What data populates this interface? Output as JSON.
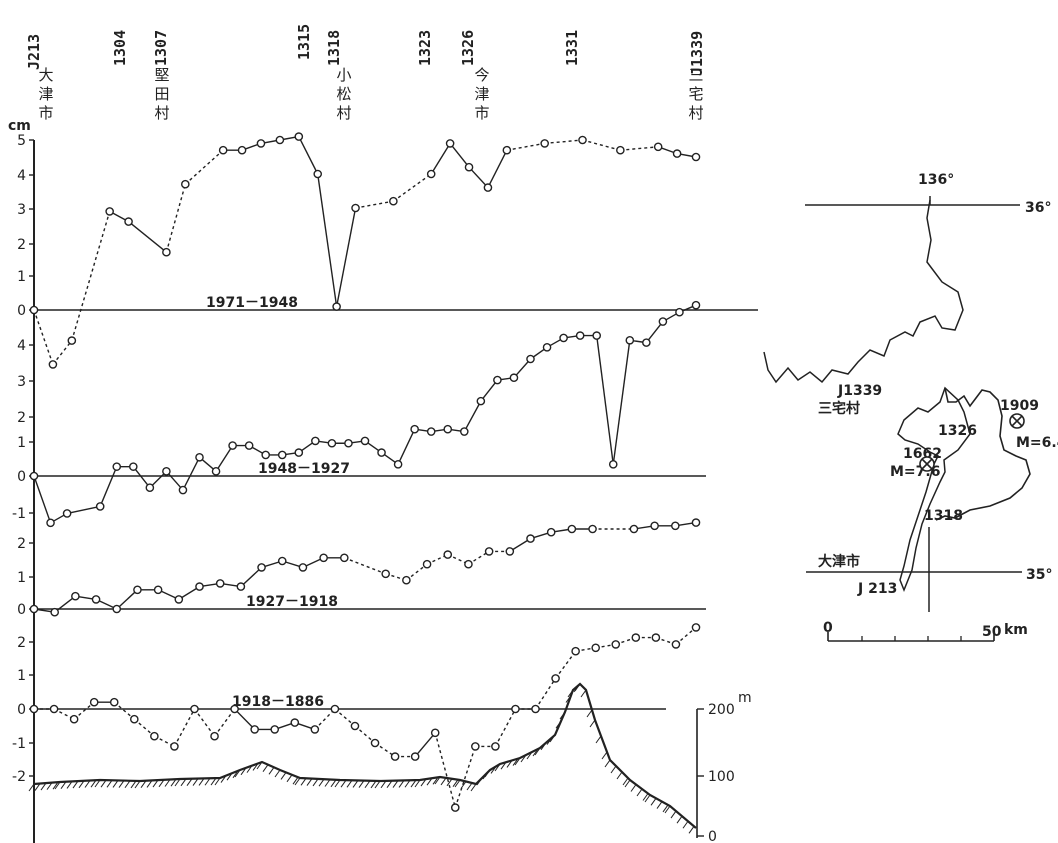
{
  "chart_data": [
    {
      "type": "line",
      "y_unit": "cm",
      "bench_marks": [
        "J213",
        "1304",
        "1307",
        "1315",
        "1318",
        "1323",
        "1326",
        "1331",
        "J1339"
      ],
      "places": [
        "大津市",
        "堅田村",
        "小松村",
        "今津市",
        "三宅村"
      ],
      "series": [
        {
          "name": "1971－1948",
          "yticks": [
            "5",
            "4",
            "3",
            "2",
            "1",
            "0"
          ],
          "values": [
            0.0,
            -1.6,
            -0.9,
            null,
            2.9,
            2.6,
            null,
            1.7,
            3.7,
            null,
            4.7,
            4.7,
            4.9,
            5.0,
            5.1,
            4.0,
            0.1,
            3.0,
            null,
            3.2,
            null,
            4.0,
            4.9,
            4.2,
            3.6,
            4.7,
            null,
            4.9,
            null,
            5.0,
            null,
            4.7,
            null,
            4.8,
            4.6,
            4.5
          ],
          "dashed_segments": [
            0,
            1,
            2,
            6,
            7,
            8,
            9,
            17,
            18,
            19,
            20,
            25,
            26,
            27,
            28,
            29,
            30,
            31
          ]
        },
        {
          "name": "1948－1927",
          "yticks": [
            "4",
            "3",
            "2",
            "1",
            "0"
          ],
          "values": [
            0.0,
            -2.0,
            -1.6,
            null,
            -1.3,
            0.4,
            0.4,
            -0.5,
            0.2,
            -0.6,
            0.8,
            0.2,
            1.3,
            1.3,
            0.9,
            0.9,
            1.0,
            1.5,
            1.4,
            1.4,
            1.5,
            1.0,
            0.5,
            2.0,
            1.9,
            2.0,
            1.9,
            3.2,
            4.1,
            4.2,
            5.0,
            5.5,
            5.9,
            6.0,
            6.0,
            0.5,
            5.8,
            5.7,
            6.6,
            7.0,
            7.3
          ]
        },
        {
          "name": "1927－1918",
          "yticks": [
            "-1",
            "2",
            "1",
            "0"
          ],
          "values": [
            0.0,
            -0.1,
            0.4,
            0.3,
            0.0,
            0.6,
            0.6,
            0.3,
            0.7,
            0.8,
            0.7,
            1.3,
            1.5,
            1.3,
            1.6,
            1.6,
            null,
            1.1,
            0.9,
            1.4,
            1.7,
            1.4,
            1.8,
            1.8,
            2.2,
            2.4,
            2.5,
            2.5,
            null,
            2.5,
            2.6,
            2.6,
            2.7
          ],
          "dashed_segments": [
            15,
            16,
            17,
            18,
            19,
            20,
            21,
            22,
            27,
            28
          ]
        },
        {
          "name": "1918－1886",
          "yticks": [
            "2",
            "1",
            "0",
            "-1",
            "-2"
          ],
          "values": [
            0.0,
            0.0,
            -0.3,
            0.2,
            0.2,
            -0.3,
            -0.8,
            -1.1,
            0.0,
            -0.8,
            0.0,
            -0.6,
            -0.6,
            -0.4,
            -0.6,
            0.0,
            -0.5,
            -1.0,
            -1.4,
            -1.4,
            -0.7,
            -2.9,
            -1.1,
            -1.1,
            0.0,
            0.0,
            0.9,
            1.7,
            1.8,
            1.9,
            2.1,
            2.1,
            1.9,
            2.4
          ],
          "dashed_segments": [
            0,
            1,
            2,
            4,
            5,
            6,
            7,
            8,
            9,
            14,
            15,
            16,
            17,
            18,
            20,
            21,
            22,
            23,
            24,
            25,
            26,
            27,
            28,
            29,
            30,
            31,
            32
          ]
        }
      ],
      "topography": {
        "unit": "m",
        "ticks": [
          "200",
          "100",
          "0"
        ]
      }
    },
    {
      "type": "map",
      "labels": {
        "lon": "136°",
        "lat_top": "36°",
        "lat_bottom": "35°",
        "j1339": "J1339",
        "miyake": "三宅村",
        "p1326": "1326",
        "e1662": "1662",
        "m1662": "M=7.6",
        "e1909": "1909",
        "m1909": "M=6.4",
        "p1318": "1318",
        "otsu": "大津市",
        "j213": "J 213",
        "scale_0": "0",
        "scale_50": "50",
        "scale_unit": "km"
      }
    }
  ]
}
